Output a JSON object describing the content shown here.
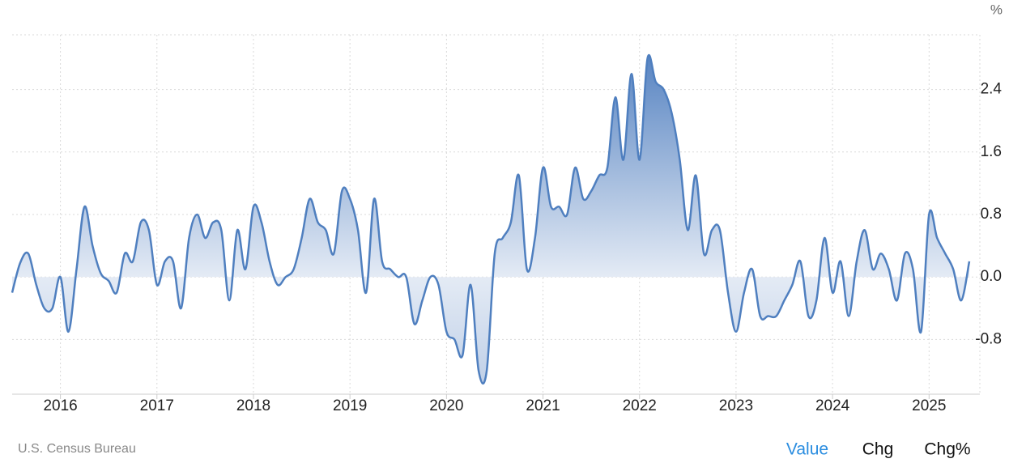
{
  "chart_data": {
    "type": "area",
    "unit_label": "%",
    "source": "U.S. Census Bureau",
    "buttons": [
      "Value",
      "Chg",
      "Chg%"
    ],
    "active_button": "Value",
    "color": "#4f7fbf",
    "grid": true,
    "xlim": [
      2015.5,
      2025.417
    ],
    "xticks": [
      2016,
      2017,
      2018,
      2019,
      2020,
      2021,
      2022,
      2023,
      2024,
      2025
    ],
    "ylim": [
      -1.5,
      3.1
    ],
    "yticks": [
      -0.8,
      {
        "value": 0,
        "label": "0.0"
      },
      0.8,
      1.6,
      2.4
    ],
    "x": [
      2015.5,
      2015.583,
      2015.667,
      2015.75,
      2015.833,
      2015.917,
      2016,
      2016.083,
      2016.167,
      2016.25,
      2016.333,
      2016.417,
      2016.5,
      2016.583,
      2016.667,
      2016.75,
      2016.833,
      2016.917,
      2017,
      2017.083,
      2017.167,
      2017.25,
      2017.333,
      2017.417,
      2017.5,
      2017.583,
      2017.667,
      2017.75,
      2017.833,
      2017.917,
      2018,
      2018.083,
      2018.167,
      2018.25,
      2018.333,
      2018.417,
      2018.5,
      2018.583,
      2018.667,
      2018.75,
      2018.833,
      2018.917,
      2019,
      2019.083,
      2019.167,
      2019.25,
      2019.333,
      2019.417,
      2019.5,
      2019.583,
      2019.667,
      2019.75,
      2019.833,
      2019.917,
      2020,
      2020.083,
      2020.167,
      2020.25,
      2020.333,
      2020.417,
      2020.5,
      2020.583,
      2020.667,
      2020.75,
      2020.833,
      2020.917,
      2021,
      2021.083,
      2021.167,
      2021.25,
      2021.333,
      2021.417,
      2021.5,
      2021.583,
      2021.667,
      2021.75,
      2021.833,
      2021.917,
      2022,
      2022.083,
      2022.167,
      2022.25,
      2022.333,
      2022.417,
      2022.5,
      2022.583,
      2022.667,
      2022.75,
      2022.833,
      2022.917,
      2023,
      2023.083,
      2023.167,
      2023.25,
      2023.333,
      2023.417,
      2023.5,
      2023.583,
      2023.667,
      2023.75,
      2023.833,
      2023.917,
      2024,
      2024.083,
      2024.167,
      2024.25,
      2024.333,
      2024.417,
      2024.5,
      2024.583,
      2024.667,
      2024.75,
      2024.833,
      2024.917,
      2025,
      2025.083,
      2025.167,
      2025.25,
      2025.333,
      2025.417
    ],
    "values": [
      -0.2,
      0.18,
      0.3,
      -0.1,
      -0.4,
      -0.4,
      0.0,
      -0.7,
      0.1,
      0.9,
      0.4,
      0.05,
      -0.05,
      -0.2,
      0.3,
      0.2,
      0.7,
      0.6,
      -0.1,
      0.2,
      0.2,
      -0.4,
      0.5,
      0.8,
      0.5,
      0.7,
      0.6,
      -0.3,
      0.6,
      0.1,
      0.9,
      0.7,
      0.2,
      -0.1,
      0.0,
      0.1,
      0.5,
      1.0,
      0.7,
      0.6,
      0.3,
      1.1,
      1.0,
      0.6,
      -0.2,
      1.0,
      0.2,
      0.1,
      0.0,
      0.0,
      -0.6,
      -0.3,
      0.0,
      -0.1,
      -0.7,
      -0.8,
      -1.0,
      -0.1,
      -1.2,
      -1.2,
      0.3,
      0.5,
      0.7,
      1.3,
      0.1,
      0.5,
      1.4,
      0.9,
      0.9,
      0.8,
      1.4,
      1.0,
      1.1,
      1.3,
      1.4,
      2.3,
      1.5,
      2.6,
      1.5,
      2.8,
      2.5,
      2.4,
      2.1,
      1.5,
      0.6,
      1.3,
      0.3,
      0.6,
      0.6,
      -0.2,
      -0.7,
      -0.2,
      0.1,
      -0.5,
      -0.5,
      -0.5,
      -0.3,
      -0.1,
      0.2,
      -0.5,
      -0.3,
      0.5,
      -0.2,
      0.2,
      -0.5,
      0.2,
      0.6,
      0.1,
      0.3,
      0.1,
      -0.3,
      0.3,
      0.1,
      -0.7,
      0.8,
      0.5,
      0.3,
      0.1,
      -0.3,
      0.2
    ]
  }
}
